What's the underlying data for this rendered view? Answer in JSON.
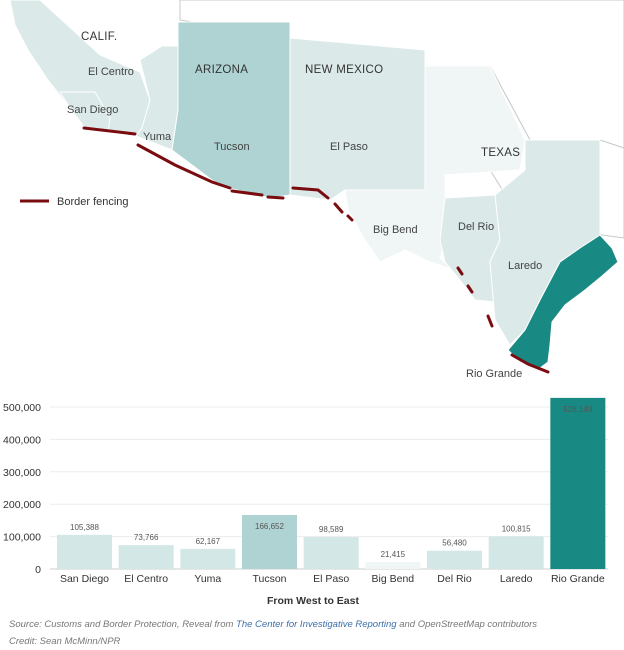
{
  "map": {
    "state_labels": [
      "CALIF.",
      "ARIZONA",
      "NEW MEXICO",
      "TEXAS"
    ],
    "sector_labels": [
      "El Centro",
      "San Diego",
      "Yuma",
      "Tucson",
      "El Paso",
      "Big Bend",
      "Del Rio",
      "Laredo",
      "Rio Grande"
    ],
    "legend_label": "Border fencing",
    "colors": {
      "fence": "#7a0c10",
      "state_outline": "#c9c9c9",
      "sector_lightest": "#f0f6f6",
      "sector_light": "#dbe9e9",
      "sector_mid": "#aed3d2",
      "sector_dark": "#198a83"
    }
  },
  "chart_data": {
    "type": "bar",
    "categories": [
      "San Diego",
      "El Centro",
      "Yuma",
      "Tucson",
      "El Paso",
      "Big Bend",
      "Del Rio",
      "Laredo",
      "Rio Grande"
    ],
    "values": [
      105388,
      73766,
      62167,
      166652,
      98589,
      21415,
      56480,
      100815,
      528149
    ],
    "value_labels": [
      "105,388",
      "73,766",
      "62,167",
      "166,652",
      "98,589",
      "21,415",
      "56,480",
      "100,815",
      "528,149"
    ],
    "title": "",
    "xlabel": "From West to East",
    "ylabel": "",
    "ylim": [
      0,
      500000
    ],
    "yticks": [
      0,
      100000,
      200000,
      300000,
      400000,
      500000
    ],
    "ytick_labels": [
      "0",
      "100,000",
      "200,000",
      "300,000",
      "400,000",
      "500,000"
    ],
    "grid": true,
    "bar_colors": [
      "#d4e7e7",
      "#d4e7e7",
      "#d4e7e7",
      "#aed3d2",
      "#d4e7e7",
      "#f0f6f6",
      "#d4e7e7",
      "#d4e7e7",
      "#198a83"
    ]
  },
  "footer": {
    "source_prefix": "Source: Customs and Border Protection, Reveal from ",
    "source_link": "The Center for Investigative Reporting",
    "source_suffix": " and OpenStreetMap contributors",
    "credit": "Credit: Sean McMinn/NPR"
  }
}
